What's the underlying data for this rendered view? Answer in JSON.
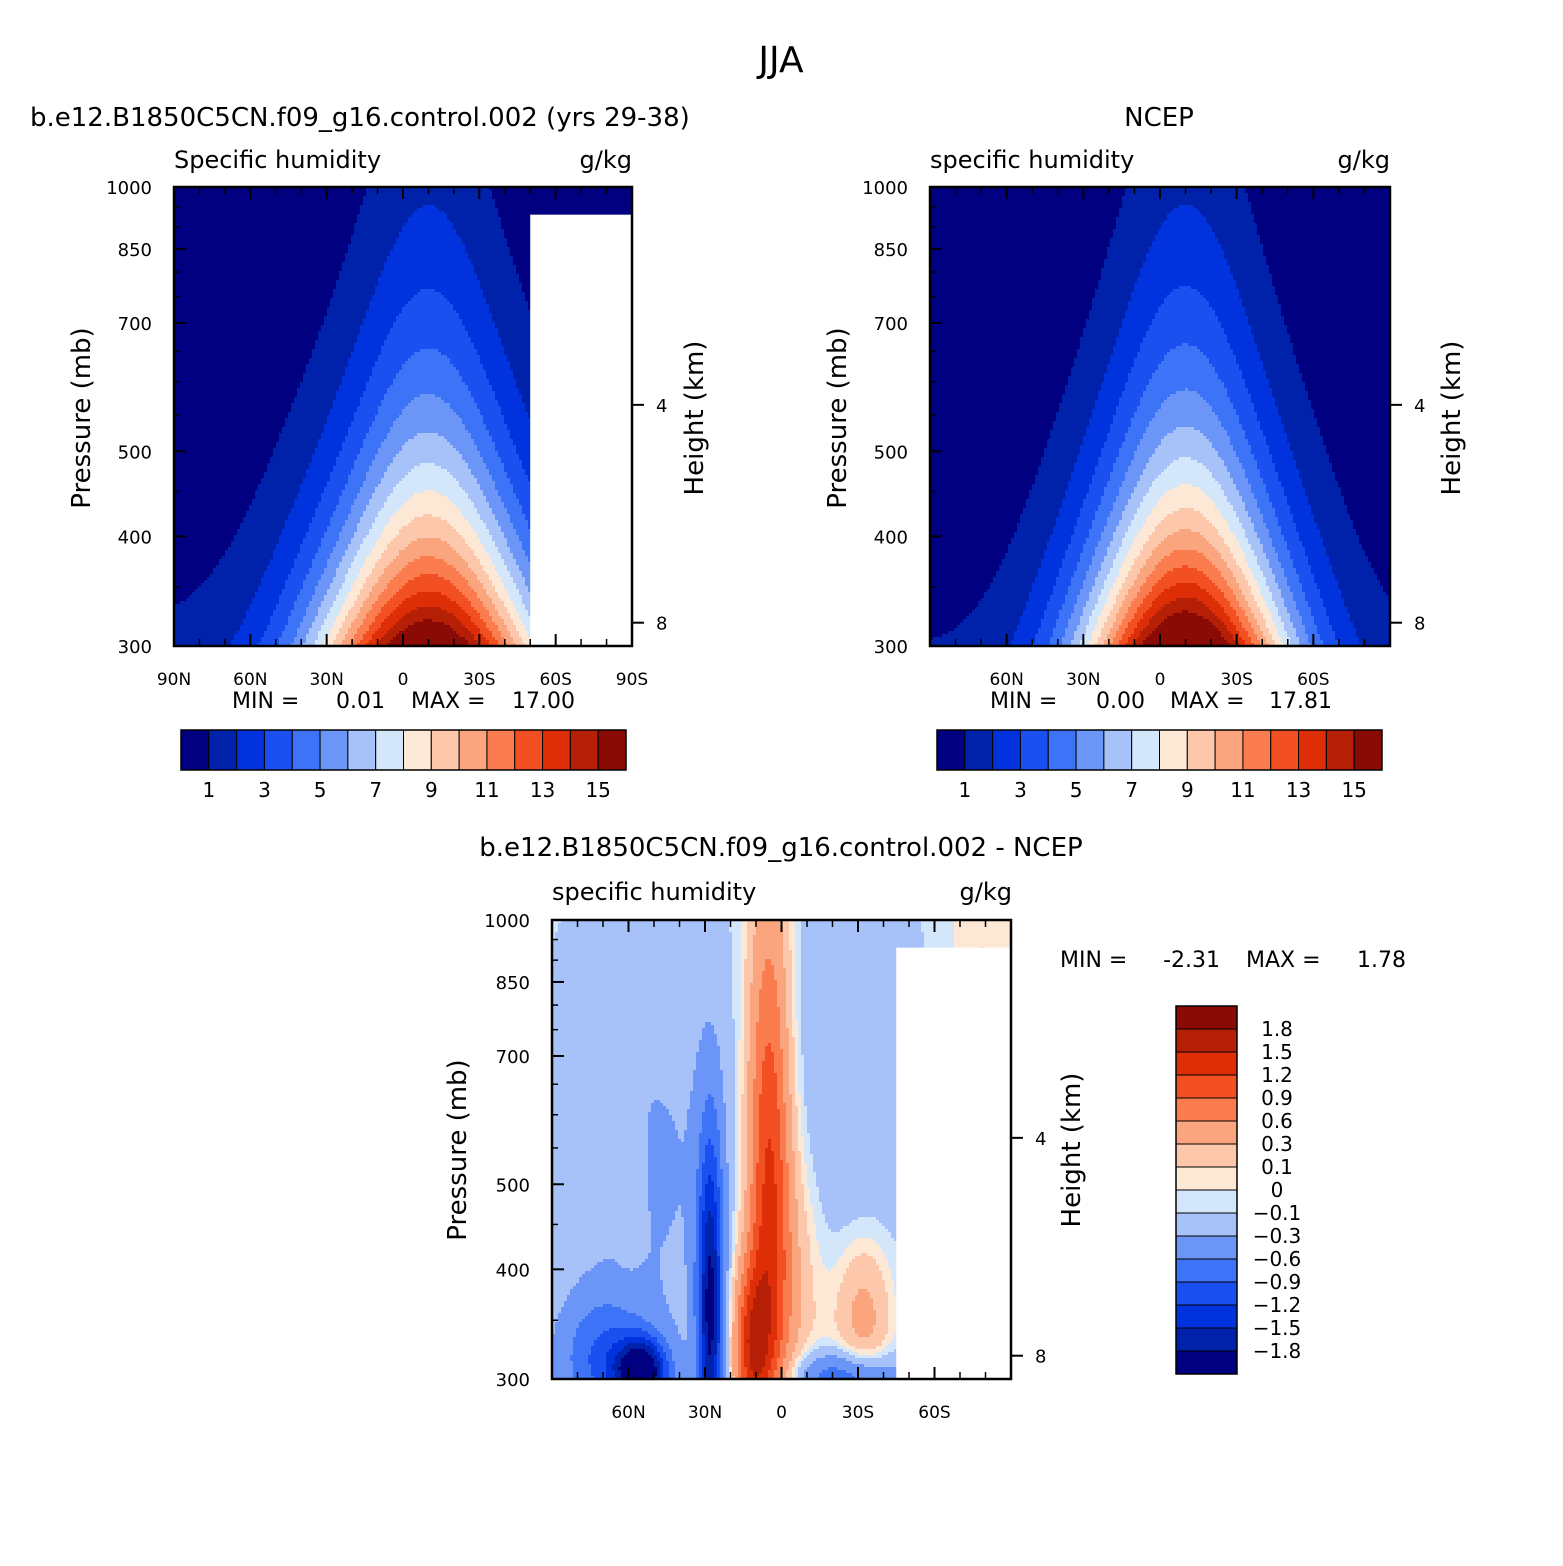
{
  "figure_title": "JJA",
  "chart_data": [
    {
      "id": "model",
      "type": "contour",
      "case_title": "b.e12.B1850C5CN.f09_g16.control.002 (yrs 29-38)",
      "variable": "Specific humidity",
      "units": "g/kg",
      "ylabel": "Pressure (mb)",
      "ylabel_right": "Height (km)",
      "yticks": [
        300,
        400,
        500,
        700,
        850,
        1000
      ],
      "yticks_right": [
        8,
        4
      ],
      "xticks": [
        "90N",
        "60N",
        "30N",
        "0",
        "30S",
        "60S",
        "90S"
      ],
      "x_range": [
        90,
        -90
      ],
      "y_range": [
        1000,
        300
      ],
      "stats": {
        "min_label": "MIN =",
        "min": "0.01",
        "max_label": "MAX =",
        "max": "17.00"
      },
      "levels": [
        1,
        2,
        3,
        4,
        5,
        6,
        7,
        8,
        9,
        10,
        11,
        12,
        13,
        14,
        15
      ],
      "colorbar_labels": [
        "1",
        "3",
        "5",
        "7",
        "9",
        "11",
        "13",
        "15"
      ],
      "peak": {
        "lat": -10,
        "value": 17.0
      },
      "missing_region": {
        "lat_from": -50,
        "lat_to": -90,
        "p_from": 930
      }
    },
    {
      "id": "ncep",
      "type": "contour",
      "case_title": "NCEP",
      "variable": "specific humidity",
      "units": "g/kg",
      "ylabel": "Pressure (mb)",
      "ylabel_right": "Height (km)",
      "yticks": [
        300,
        400,
        500,
        700,
        850,
        1000
      ],
      "yticks_right": [
        8,
        4
      ],
      "xticks": [
        "60N",
        "30N",
        "0",
        "30S",
        "60S"
      ],
      "x_range": [
        90,
        -90
      ],
      "y_range": [
        1000,
        300
      ],
      "stats": {
        "min_label": "MIN =",
        "min": "0.00",
        "max_label": "MAX =",
        "max": "17.81"
      },
      "levels": [
        1,
        2,
        3,
        4,
        5,
        6,
        7,
        8,
        9,
        10,
        11,
        12,
        13,
        14,
        15
      ],
      "colorbar_labels": [
        "1",
        "3",
        "5",
        "7",
        "9",
        "11",
        "13",
        "15"
      ],
      "peak": {
        "lat": -10,
        "value": 17.81
      }
    },
    {
      "id": "diff",
      "type": "contour",
      "case_title": "b.e12.B1850C5CN.f09_g16.control.002 - NCEP",
      "variable": "specific humidity",
      "units": "g/kg",
      "ylabel": "Pressure (mb)",
      "ylabel_right": "Height (km)",
      "yticks": [
        300,
        400,
        500,
        700,
        850,
        1000
      ],
      "yticks_right": [
        8,
        4
      ],
      "xticks": [
        "60N",
        "30N",
        "0",
        "30S",
        "60S"
      ],
      "x_range": [
        90,
        -90
      ],
      "y_range": [
        1000,
        300
      ],
      "stats": {
        "min_label": "MIN =",
        "min": "-2.31",
        "max_label": "MAX =",
        "max": "1.78"
      },
      "levels": [
        -1.8,
        -1.5,
        -1.2,
        -0.9,
        -0.6,
        -0.3,
        -0.1,
        0,
        0.1,
        0.3,
        0.6,
        0.9,
        1.2,
        1.5,
        1.8
      ],
      "colorbar_labels": [
        "1.8",
        "1.5",
        "1.2",
        "0.9",
        "0.6",
        "0.3",
        "0.1",
        "0",
        "-0.1",
        "-0.3",
        "-0.6",
        "-0.9",
        "-1.2",
        "-1.5",
        "-1.8"
      ],
      "missing_region": {
        "lat_from": -45,
        "lat_to": -90,
        "p_from": 930
      }
    }
  ],
  "colors": {
    "ramp": [
      "#000080",
      "#0022aa",
      "#0033dd",
      "#1a50f0",
      "#3d73f7",
      "#6b95f7",
      "#a6c2f8",
      "#d3e6fa",
      "#fde8d6",
      "#fcc7ab",
      "#fba57f",
      "#fb7c4f",
      "#f24f22",
      "#dd2e08",
      "#b51f06",
      "#8a0a05"
    ],
    "background": "#ffffff",
    "axis": "#000000"
  }
}
